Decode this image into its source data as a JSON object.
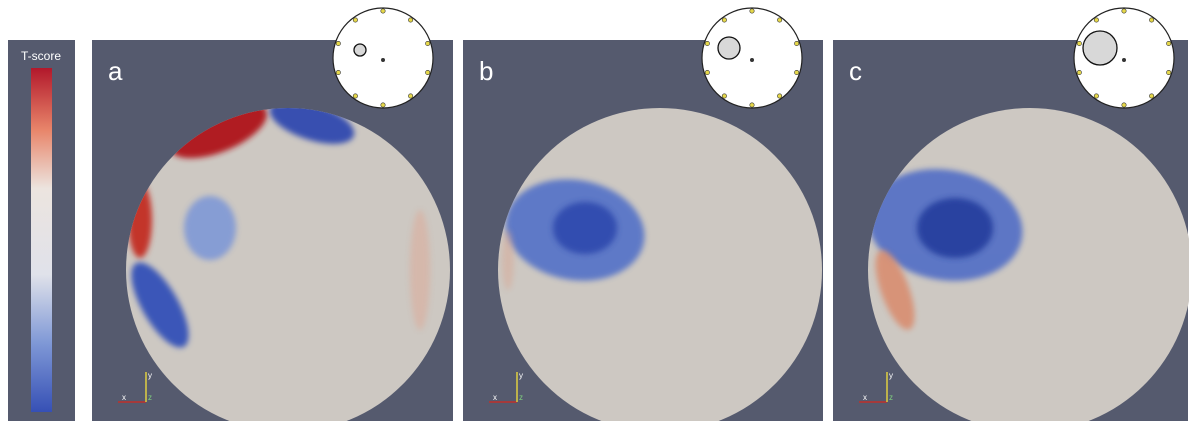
{
  "colorbar": {
    "title": "T-score"
  },
  "panels": [
    {
      "label": "a"
    },
    {
      "label": "b"
    },
    {
      "label": "c"
    }
  ],
  "axes": {
    "x": "x",
    "y": "y",
    "z": "z"
  }
}
